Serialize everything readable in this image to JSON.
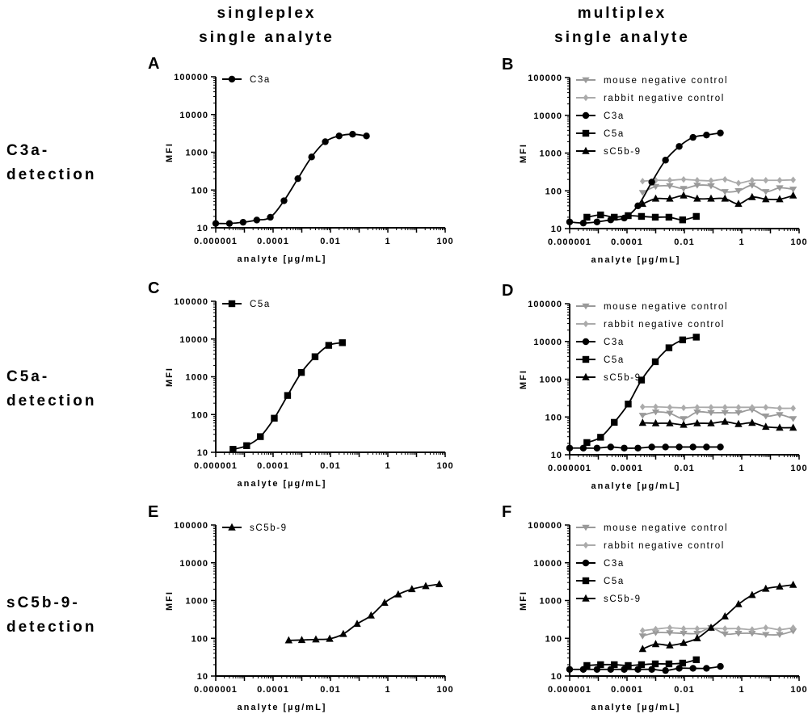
{
  "headers": {
    "col1": [
      "singleplex",
      "single analyte"
    ],
    "col2": [
      "multiplex",
      "single analyte"
    ]
  },
  "row_labels": [
    [
      "C3a-",
      "detection"
    ],
    [
      "C5a-",
      "detection"
    ],
    [
      "sC5b-9-",
      "detection"
    ]
  ],
  "colors": {
    "sample": "#000000",
    "mouse": "#9a9a9a",
    "rabbit": "#ababab"
  },
  "chart_data": [
    {
      "panel": "A",
      "type": "line",
      "xscale": "log",
      "yscale": "log",
      "xlabel": "analyte [µg/mL]",
      "ylabel": "MFI",
      "xlim": [
        1e-06,
        100
      ],
      "ylim": [
        10,
        100000
      ],
      "xticks": [
        "0.000001",
        "0.0001",
        "0.01",
        "1",
        "100"
      ],
      "yticks": [
        "10",
        "100",
        "1000",
        "10000",
        "100000"
      ],
      "legend": "top-left",
      "series": [
        {
          "name": "C3a",
          "marker": "circle",
          "color": "#000000",
          "x": [
            1e-06,
            3e-06,
            9e-06,
            2.7e-05,
            8e-05,
            0.00024,
            0.00073,
            0.0022,
            0.0066,
            0.02,
            0.059,
            0.18
          ],
          "y": [
            13,
            13,
            14,
            16,
            19,
            52,
            200,
            750,
            1900,
            2700,
            3000,
            2700
          ]
        }
      ]
    },
    {
      "panel": "B",
      "type": "line",
      "xscale": "log",
      "yscale": "log",
      "xlabel": "analyte [µg/mL]",
      "ylabel": "MFI",
      "xlim": [
        1e-06,
        100
      ],
      "ylim": [
        10,
        100000
      ],
      "xticks": [
        "0.000001",
        "0.0001",
        "0.01",
        "1",
        "100"
      ],
      "yticks": [
        "10",
        "100",
        "1000",
        "10000",
        "100000"
      ],
      "legend": "top-left",
      "series": [
        {
          "name": "mouse negative control",
          "marker": "triangle-down",
          "color": "#9a9a9a",
          "x": [
            0.00035,
            0.001,
            0.0031,
            0.0094,
            0.028,
            0.085,
            0.26,
            0.77,
            2.3,
            6.9,
            21,
            62
          ],
          "y": [
            90,
            130,
            135,
            115,
            140,
            135,
            95,
            100,
            140,
            95,
            120,
            110
          ]
        },
        {
          "name": "rabbit negative control",
          "marker": "diamond",
          "color": "#ababab",
          "x": [
            0.00035,
            0.001,
            0.0031,
            0.0094,
            0.028,
            0.085,
            0.26,
            0.77,
            2.3,
            6.9,
            21,
            62
          ],
          "y": [
            180,
            190,
            190,
            200,
            190,
            185,
            200,
            160,
            190,
            190,
            190,
            195
          ]
        },
        {
          "name": "C3a",
          "marker": "circle",
          "color": "#000000",
          "x": [
            1e-06,
            3e-06,
            9e-06,
            2.7e-05,
            8e-05,
            0.00024,
            0.00073,
            0.0022,
            0.0066,
            0.02,
            0.059,
            0.18
          ],
          "y": [
            15,
            14,
            15,
            17,
            19,
            40,
            170,
            650,
            1500,
            2600,
            3000,
            3400
          ]
        },
        {
          "name": "C5a",
          "marker": "square",
          "color": "#000000",
          "x": [
            4e-06,
            1.2e-05,
            3.6e-05,
            0.00011,
            0.00032,
            0.00097,
            0.0029,
            0.0087,
            0.026
          ],
          "y": [
            20,
            23,
            20,
            22,
            21,
            20,
            20,
            17,
            21
          ]
        },
        {
          "name": "sC5b-9",
          "marker": "triangle-up",
          "color": "#000000",
          "x": [
            0.00035,
            0.001,
            0.0031,
            0.0094,
            0.028,
            0.085,
            0.26,
            0.77,
            2.3,
            6.9,
            21,
            62
          ],
          "y": [
            45,
            62,
            62,
            75,
            62,
            62,
            62,
            45,
            68,
            60,
            60,
            75
          ]
        }
      ]
    },
    {
      "panel": "C",
      "type": "line",
      "xscale": "log",
      "yscale": "log",
      "xlabel": "analyte [µg/mL]",
      "ylabel": "MFI",
      "xlim": [
        1e-06,
        100
      ],
      "ylim": [
        10,
        100000
      ],
      "xticks": [
        "0.000001",
        "0.0001",
        "0.01",
        "1",
        "100"
      ],
      "yticks": [
        "10",
        "100",
        "1000",
        "10000",
        "100000"
      ],
      "legend": "top-left",
      "series": [
        {
          "name": "C5a",
          "marker": "square",
          "color": "#000000",
          "x": [
            4e-06,
            1.2e-05,
            3.6e-05,
            0.00011,
            0.00032,
            0.00097,
            0.0029,
            0.0087,
            0.026
          ],
          "y": [
            12,
            15,
            26,
            80,
            320,
            1300,
            3400,
            6800,
            8000
          ]
        }
      ]
    },
    {
      "panel": "D",
      "type": "line",
      "xscale": "log",
      "yscale": "log",
      "xlabel": "analyte [µg/mL]",
      "ylabel": "MFI",
      "xlim": [
        1e-06,
        100
      ],
      "ylim": [
        10,
        100000
      ],
      "xticks": [
        "0.000001",
        "0.0001",
        "0.01",
        "1",
        "100"
      ],
      "yticks": [
        "10",
        "100",
        "1000",
        "10000",
        "100000"
      ],
      "legend": "top-left",
      "series": [
        {
          "name": "mouse negative control",
          "marker": "triangle-down",
          "color": "#9a9a9a",
          "x": [
            0.00035,
            0.001,
            0.0031,
            0.0094,
            0.028,
            0.085,
            0.26,
            0.77,
            2.3,
            6.9,
            21,
            62
          ],
          "y": [
            110,
            135,
            125,
            90,
            135,
            130,
            130,
            130,
            155,
            105,
            115,
            90
          ]
        },
        {
          "name": "rabbit negative control",
          "marker": "diamond",
          "color": "#ababab",
          "x": [
            0.00035,
            0.001,
            0.0031,
            0.0094,
            0.028,
            0.085,
            0.26,
            0.77,
            2.3,
            6.9,
            21,
            62
          ],
          "y": [
            185,
            185,
            180,
            175,
            180,
            180,
            180,
            180,
            180,
            180,
            170,
            170
          ]
        },
        {
          "name": "C3a",
          "marker": "circle",
          "color": "#000000",
          "x": [
            1e-06,
            3e-06,
            9e-06,
            2.7e-05,
            8e-05,
            0.00024,
            0.00073,
            0.0022,
            0.0066,
            0.02,
            0.059,
            0.18
          ],
          "y": [
            15,
            15,
            15,
            16,
            15,
            15,
            16,
            16,
            16,
            16,
            16,
            16
          ]
        },
        {
          "name": "C5a",
          "marker": "square",
          "color": "#000000",
          "x": [
            4e-06,
            1.2e-05,
            3.6e-05,
            0.00011,
            0.00032,
            0.00097,
            0.0029,
            0.0087,
            0.026
          ],
          "y": [
            21,
            29,
            72,
            220,
            950,
            2900,
            6800,
            11000,
            13000
          ]
        },
        {
          "name": "sC5b-9",
          "marker": "triangle-up",
          "color": "#000000",
          "x": [
            0.00035,
            0.001,
            0.0031,
            0.0094,
            0.028,
            0.085,
            0.26,
            0.77,
            2.3,
            6.9,
            21,
            62
          ],
          "y": [
            70,
            68,
            68,
            62,
            68,
            68,
            75,
            65,
            70,
            55,
            52,
            52
          ]
        }
      ]
    },
    {
      "panel": "E",
      "type": "line",
      "xscale": "log",
      "yscale": "log",
      "xlabel": "analyte [µg/mL]",
      "ylabel": "MFI",
      "xlim": [
        1e-06,
        100
      ],
      "ylim": [
        10,
        100000
      ],
      "xticks": [
        "0.000001",
        "0.0001",
        "0.01",
        "1",
        "100"
      ],
      "yticks": [
        "10",
        "100",
        "1000",
        "10000",
        "100000"
      ],
      "legend": "top-left",
      "series": [
        {
          "name": "sC5b-9",
          "marker": "triangle-up",
          "color": "#000000",
          "x": [
            0.00035,
            0.001,
            0.0031,
            0.0094,
            0.028,
            0.085,
            0.26,
            0.77,
            2.3,
            6.9,
            21,
            62
          ],
          "y": [
            88,
            90,
            93,
            97,
            130,
            240,
            400,
            870,
            1450,
            2000,
            2400,
            2700
          ]
        }
      ]
    },
    {
      "panel": "F",
      "type": "line",
      "xscale": "log",
      "yscale": "log",
      "xlabel": "analyte [µg/mL]",
      "ylabel": "MFI",
      "xlim": [
        1e-06,
        100
      ],
      "ylim": [
        10,
        100000
      ],
      "xticks": [
        "0.000001",
        "0.0001",
        "0.01",
        "1",
        "100"
      ],
      "yticks": [
        "10",
        "100",
        "1000",
        "10000",
        "100000"
      ],
      "legend": "top-left",
      "series": [
        {
          "name": "mouse negative control",
          "marker": "triangle-down",
          "color": "#9a9a9a",
          "x": [
            0.00035,
            0.001,
            0.0031,
            0.0094,
            0.028,
            0.085,
            0.26,
            0.77,
            2.3,
            6.9,
            21,
            62
          ],
          "y": [
            115,
            140,
            140,
            135,
            135,
            190,
            130,
            135,
            135,
            125,
            125,
            155
          ]
        },
        {
          "name": "rabbit negative control",
          "marker": "diamond",
          "color": "#ababab",
          "x": [
            0.00035,
            0.001,
            0.0031,
            0.0094,
            0.028,
            0.085,
            0.26,
            0.77,
            2.3,
            6.9,
            21,
            62
          ],
          "y": [
            160,
            175,
            190,
            180,
            180,
            185,
            180,
            180,
            170,
            190,
            170,
            190
          ]
        },
        {
          "name": "C3a",
          "marker": "circle",
          "color": "#000000",
          "x": [
            1e-06,
            3e-06,
            9e-06,
            2.7e-05,
            8e-05,
            0.00024,
            0.00073,
            0.0022,
            0.0066,
            0.02,
            0.059,
            0.18
          ],
          "y": [
            15,
            15,
            15,
            15,
            15,
            15,
            15,
            14,
            16,
            16,
            16,
            18
          ]
        },
        {
          "name": "C5a",
          "marker": "square",
          "color": "#000000",
          "x": [
            4e-06,
            1.2e-05,
            3.6e-05,
            0.00011,
            0.00032,
            0.00097,
            0.0029,
            0.0087,
            0.026
          ],
          "y": [
            19,
            20,
            20,
            19,
            20,
            21,
            21,
            22,
            27
          ]
        },
        {
          "name": "sC5b-9",
          "marker": "triangle-up",
          "color": "#000000",
          "x": [
            0.00035,
            0.001,
            0.0031,
            0.0094,
            0.028,
            0.085,
            0.26,
            0.77,
            2.3,
            6.9,
            21,
            62
          ],
          "y": [
            52,
            70,
            65,
            75,
            100,
            190,
            380,
            800,
            1400,
            2050,
            2350,
            2600
          ]
        }
      ]
    }
  ]
}
